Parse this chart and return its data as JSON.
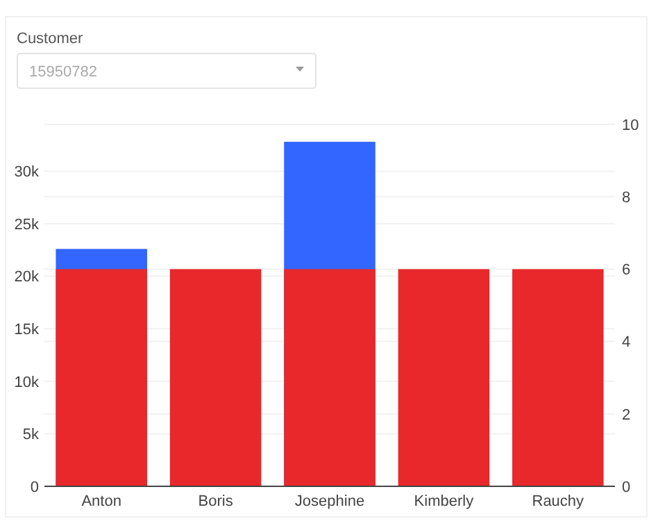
{
  "chart_data": {
    "type": "bar",
    "categories": [
      "Anton",
      "Boris",
      "Josephine",
      "Kimberly",
      "Rauchy"
    ],
    "series": [
      {
        "color": "#3366ff",
        "values": [
          22600,
          null,
          32800,
          null,
          null
        ]
      },
      {
        "color": "#e8282b",
        "axis": "y2",
        "values": [
          6,
          6,
          6,
          6,
          6
        ]
      }
    ],
    "ylim": [
      0,
      34460
    ],
    "yticks": [
      0,
      {
        "value": 5000,
        "label": "5k"
      },
      {
        "value": 10000,
        "label": "10k"
      },
      {
        "value": 15000,
        "label": "15k"
      },
      {
        "value": 20000,
        "label": "20k"
      },
      {
        "value": 25000,
        "label": "25k"
      },
      {
        "value": 30000,
        "label": "30k"
      }
    ],
    "y2lim": [
      0,
      10
    ],
    "y2ticks": [
      0,
      2,
      4,
      6,
      8,
      10
    ],
    "grid": true,
    "annotations": [
      "Customer",
      "15950782"
    ]
  }
}
